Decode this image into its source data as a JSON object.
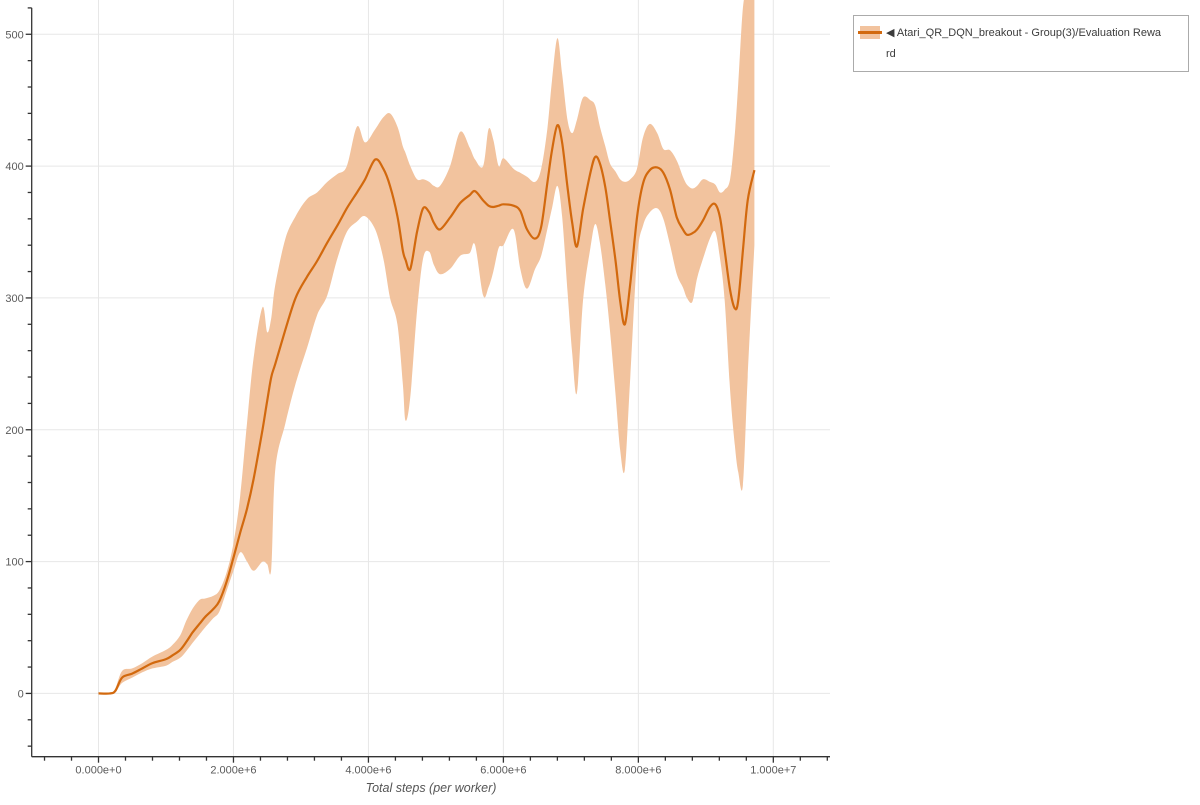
{
  "colors": {
    "line": "#d2690e",
    "band": "#f2c39e",
    "grid": "#e7e7e7",
    "axis": "#333333",
    "tick_label": "#5b5b5b",
    "axis_title": "#555555",
    "legend_border": "#ababab",
    "legend_text": "#3c3c3c",
    "background": "#ffffff"
  },
  "legend": {
    "lines": [
      "◀ Atari_QR_DQN_breakout - Group(3)/Evaluation Rewa",
      "rd"
    ]
  },
  "chart_data": {
    "type": "line",
    "title": "",
    "xlabel": "Total steps (per worker)",
    "ylabel": "",
    "grid": true,
    "legend_position": "top-right",
    "x_units": "steps (millions)",
    "x_range_M": [
      -0.99,
      10.84
    ],
    "y_range": [
      -48,
      526
    ],
    "x_tick_values_M": [
      0,
      2,
      4,
      6,
      8,
      10
    ],
    "x_tick_labels": [
      "0.000e+0",
      "2.000e+6",
      "4.000e+6",
      "6.000e+6",
      "8.000e+6",
      "1.000e+7"
    ],
    "y_ticks": [
      0,
      100,
      200,
      300,
      400,
      500
    ],
    "x_minor_step_M": 0.4,
    "y_minor_step": 20,
    "series": [
      {
        "name": "Atari_QR_DQN_breakout - Group(3)/Evaluation Reward",
        "color": "#d2690e",
        "band_color": "#f2c39e",
        "x_M": [
          0,
          0.17,
          0.25,
          0.35,
          0.5,
          0.65,
          0.8,
          1.0,
          1.1,
          1.21,
          1.3,
          1.39,
          1.5,
          1.58,
          1.7,
          1.79,
          1.9,
          2.0,
          2.1,
          2.2,
          2.3,
          2.43,
          2.5,
          2.56,
          2.62,
          2.77,
          2.92,
          3.09,
          3.24,
          3.39,
          3.54,
          3.68,
          3.83,
          3.95,
          4.1,
          4.22,
          4.32,
          4.43,
          4.51,
          4.55,
          4.62,
          4.72,
          4.81,
          4.9,
          4.97,
          5.06,
          5.21,
          5.36,
          5.5,
          5.58,
          5.7,
          5.78,
          5.85,
          5.93,
          6.0,
          6.15,
          6.25,
          6.35,
          6.47,
          6.56,
          6.65,
          6.72,
          6.8,
          6.87,
          6.95,
          7.02,
          7.09,
          7.18,
          7.29,
          7.36,
          7.43,
          7.51,
          7.58,
          7.66,
          7.73,
          7.8,
          7.88,
          7.98,
          8.07,
          8.17,
          8.28,
          8.37,
          8.47,
          8.57,
          8.66,
          8.72,
          8.8,
          8.87,
          8.96,
          9.06,
          9.14,
          9.21,
          9.28,
          9.36,
          9.43,
          9.48,
          9.55,
          9.62,
          9.72
        ],
        "mean": [
          0,
          0,
          2,
          12,
          15,
          19,
          23,
          26,
          29,
          33,
          39,
          46,
          53,
          58,
          64,
          70,
          85,
          103,
          122,
          140,
          163,
          200,
          222,
          240,
          250,
          276,
          300,
          316,
          328,
          342,
          355,
          368,
          380,
          390,
          405,
          398,
          385,
          362,
          336,
          329,
          322,
          350,
          368,
          365,
          357,
          352,
          361,
          372,
          378,
          381,
          374,
          370,
          369,
          370,
          371,
          370,
          366,
          352,
          345,
          354,
          387,
          412,
          431,
          418,
          384,
          357,
          339,
          367,
          395,
          407,
          402,
          384,
          359,
          329,
          298,
          280,
          311,
          361,
          387,
          397,
          399,
          395,
          382,
          361,
          352,
          348,
          349,
          352,
          359,
          369,
          371,
          361,
          336,
          306,
          292,
          298,
          336,
          374,
          397
        ],
        "band_lo": [
          0,
          0,
          1,
          8,
          12,
          16,
          19,
          21,
          24,
          27,
          32,
          38,
          45,
          50,
          57,
          62,
          78,
          93,
          107,
          100,
          93,
          100,
          98,
          95,
          170,
          205,
          235,
          262,
          287,
          302,
          330,
          350,
          358,
          362,
          352,
          330,
          300,
          280,
          235,
          207,
          225,
          290,
          330,
          335,
          325,
          318,
          322,
          332,
          334,
          340,
          302,
          308,
          320,
          338,
          340,
          352,
          322,
          307,
          322,
          332,
          352,
          368,
          385,
          362,
          305,
          258,
          228,
          298,
          338,
          356,
          342,
          310,
          275,
          228,
          185,
          170,
          240,
          330,
          355,
          365,
          368,
          360,
          340,
          318,
          308,
          300,
          297,
          315,
          330,
          345,
          350,
          330,
          298,
          230,
          188,
          168,
          158,
          240,
          340
        ],
        "band_hi": [
          0,
          0,
          4,
          17,
          19,
          23,
          28,
          33,
          37,
          44,
          55,
          64,
          71,
          72,
          74,
          78,
          92,
          114,
          150,
          205,
          255,
          293,
          274,
          285,
          310,
          345,
          362,
          375,
          380,
          388,
          394,
          400,
          430,
          418,
          428,
          437,
          440,
          430,
          415,
          410,
          400,
          390,
          390,
          388,
          385,
          385,
          400,
          426,
          414,
          405,
          400,
          428,
          420,
          400,
          406,
          398,
          395,
          392,
          388,
          398,
          428,
          465,
          497,
          470,
          435,
          425,
          435,
          452,
          450,
          446,
          430,
          415,
          402,
          396,
          390,
          388,
          390,
          398,
          422,
          432,
          425,
          413,
          412,
          404,
          392,
          386,
          383,
          385,
          390,
          388,
          386,
          380,
          382,
          390,
          425,
          462,
          520,
          535,
          540
        ]
      }
    ]
  }
}
